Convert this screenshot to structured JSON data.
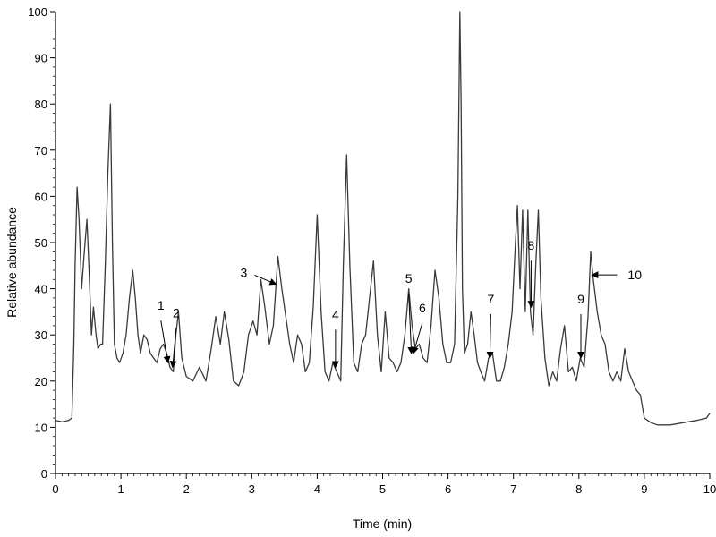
{
  "chart_data": {
    "type": "line",
    "title": "",
    "xlabel": "Time (min)",
    "ylabel": "Relative abundance",
    "xlim": [
      0,
      10
    ],
    "ylim": [
      0,
      100
    ],
    "x_ticks": [
      0,
      1,
      2,
      3,
      4,
      5,
      6,
      7,
      8,
      9,
      10
    ],
    "y_ticks": [
      0,
      10,
      20,
      30,
      40,
      50,
      60,
      70,
      80,
      90,
      100
    ],
    "x_tick_labels": [
      "0",
      "1",
      "2",
      "3",
      "4",
      "5",
      "6",
      "7",
      "8",
      "9",
      "10"
    ],
    "y_tick_labels": [
      "0",
      "10",
      "20",
      "30",
      "40",
      "50",
      "60",
      "70",
      "80",
      "90",
      "100"
    ],
    "grid": false,
    "line_color": "#3a3a3a",
    "series": [
      {
        "x": [
          0.0,
          0.1,
          0.2,
          0.25,
          0.28,
          0.3,
          0.33,
          0.36,
          0.4,
          0.44,
          0.48,
          0.51,
          0.55,
          0.58,
          0.62,
          0.65,
          0.69,
          0.72,
          0.76,
          0.8,
          0.84,
          0.87,
          0.9,
          0.94,
          0.98,
          1.03,
          1.08,
          1.13,
          1.18,
          1.22,
          1.26,
          1.3,
          1.35,
          1.4,
          1.45,
          1.5,
          1.55,
          1.6,
          1.65,
          1.7,
          1.75,
          1.8,
          1.84,
          1.88,
          1.93,
          2.0,
          2.1,
          2.2,
          2.3,
          2.38,
          2.45,
          2.52,
          2.58,
          2.65,
          2.72,
          2.8,
          2.88,
          2.95,
          3.02,
          3.08,
          3.14,
          3.2,
          3.27,
          3.33,
          3.4,
          3.46,
          3.52,
          3.58,
          3.64,
          3.7,
          3.76,
          3.82,
          3.88,
          3.94,
          4.0,
          4.06,
          4.12,
          4.18,
          4.24,
          4.3,
          4.36,
          4.4,
          4.45,
          4.5,
          4.56,
          4.62,
          4.68,
          4.74,
          4.8,
          4.86,
          4.92,
          4.98,
          5.04,
          5.1,
          5.16,
          5.22,
          5.28,
          5.34,
          5.4,
          5.45,
          5.5,
          5.56,
          5.62,
          5.68,
          5.74,
          5.8,
          5.86,
          5.92,
          5.98,
          6.04,
          6.1,
          6.15,
          6.18,
          6.2,
          6.22,
          6.25,
          6.3,
          6.35,
          6.4,
          6.45,
          6.5,
          6.56,
          6.62,
          6.68,
          6.74,
          6.8,
          6.86,
          6.92,
          6.98,
          7.03,
          7.06,
          7.1,
          7.14,
          7.18,
          7.22,
          7.26,
          7.3,
          7.34,
          7.38,
          7.42,
          7.48,
          7.54,
          7.6,
          7.66,
          7.72,
          7.78,
          7.84,
          7.9,
          7.96,
          8.02,
          8.08,
          8.14,
          8.18,
          8.22,
          8.28,
          8.34,
          8.4,
          8.46,
          8.52,
          8.58,
          8.64,
          8.7,
          8.76,
          8.82,
          8.88,
          8.94,
          9.0,
          9.1,
          9.2,
          9.4,
          9.6,
          9.8,
          9.95,
          10.0
        ],
        "values": [
          11.5,
          11.2,
          11.5,
          12,
          28,
          45,
          62,
          55,
          40,
          48,
          55,
          45,
          30,
          36,
          30,
          27,
          28,
          28,
          45,
          65,
          80,
          50,
          28,
          25,
          24,
          26,
          30,
          38,
          44,
          38,
          30,
          26,
          30,
          29,
          26,
          25,
          24,
          27,
          28,
          26,
          23,
          22,
          30,
          35,
          25,
          21,
          20,
          23,
          20,
          27,
          34,
          28,
          35,
          29,
          20,
          19,
          22,
          30,
          33,
          30,
          42,
          36,
          28,
          32,
          47,
          40,
          34,
          28,
          24,
          30,
          28,
          22,
          24,
          36,
          56,
          35,
          22,
          20,
          24,
          22,
          20,
          45,
          69,
          45,
          24,
          22,
          28,
          30,
          38,
          46,
          30,
          22,
          35,
          25,
          24,
          22,
          24,
          30,
          40,
          32,
          27,
          28,
          25,
          24,
          32,
          44,
          38,
          28,
          24,
          24,
          28,
          60,
          100,
          80,
          40,
          26,
          28,
          35,
          30,
          24,
          22,
          20,
          25,
          26,
          20,
          20,
          23,
          28,
          35,
          50,
          58,
          40,
          57,
          35,
          57,
          35,
          30,
          45,
          57,
          38,
          25,
          19,
          22,
          20,
          27,
          32,
          22,
          23,
          20,
          25,
          23,
          34,
          48,
          42,
          35,
          30,
          28,
          22,
          20,
          22,
          20,
          27,
          22,
          20,
          18,
          17,
          12,
          11,
          10.5,
          10.5,
          11,
          11.5,
          12,
          13
        ]
      }
    ],
    "annotations": [
      {
        "label": "1",
        "x": 1.72,
        "y": 24
      },
      {
        "label": "2",
        "x": 1.79,
        "y": 23
      },
      {
        "label": "3",
        "x": 3.37,
        "y": 41
      },
      {
        "label": "4",
        "x": 4.28,
        "y": 23
      },
      {
        "label": "5",
        "x": 5.44,
        "y": 26
      },
      {
        "label": "6",
        "x": 5.47,
        "y": 26
      },
      {
        "label": "7",
        "x": 6.64,
        "y": 25
      },
      {
        "label": "8",
        "x": 7.27,
        "y": 36
      },
      {
        "label": "9",
        "x": 8.03,
        "y": 25
      },
      {
        "label": "10",
        "x": 8.2,
        "y": 43
      }
    ]
  }
}
